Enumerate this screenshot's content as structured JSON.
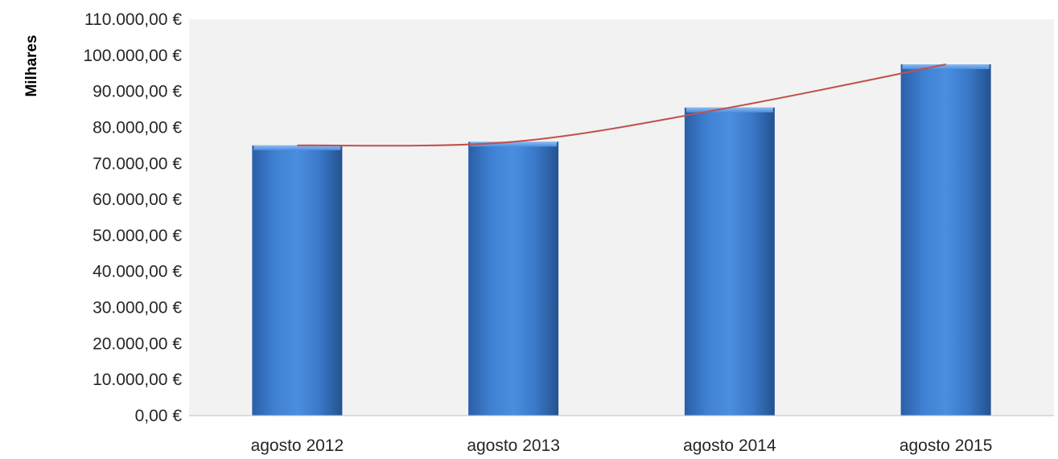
{
  "chart_data": {
    "type": "bar",
    "categories": [
      "agosto  2012",
      "agosto  2013",
      "agosto  2014",
      "agosto  2015"
    ],
    "values": [
      75000,
      76000,
      85500,
      97500
    ],
    "trendline": [
      75000,
      76000,
      85500,
      97500
    ],
    "ylabel": "Milhares",
    "ylim": [
      0,
      110000
    ],
    "yticks": [
      0,
      10000,
      20000,
      30000,
      40000,
      50000,
      60000,
      70000,
      80000,
      90000,
      100000,
      110000
    ],
    "ytick_labels": [
      "0,00 €",
      "10.000,00 €",
      "20.000,00 €",
      "30.000,00 €",
      "40.000,00 €",
      "50.000,00 €",
      "60.000,00 €",
      "70.000,00 €",
      "80.000,00 €",
      "90.000,00 €",
      "100.000,00 €",
      "110.000,00 €"
    ],
    "grid": false,
    "colors": {
      "bar": "#3a78c8",
      "trendline": "#c0504d",
      "plot_background": "#f2f2f2"
    }
  }
}
